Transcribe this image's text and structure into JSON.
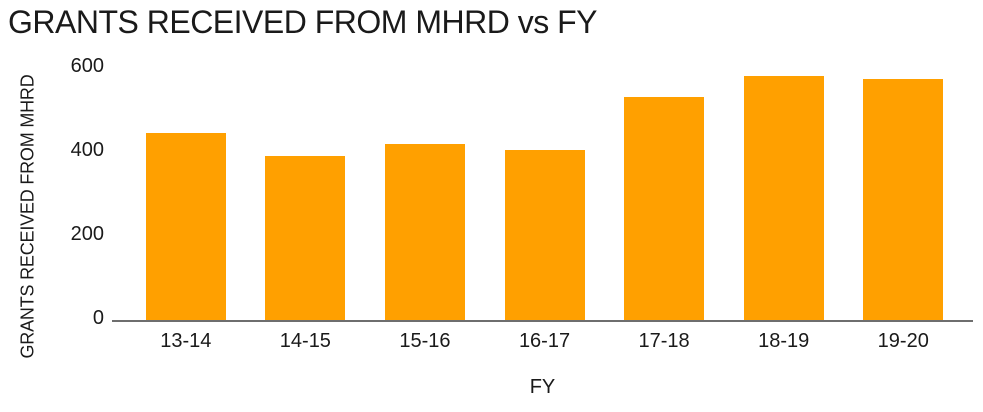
{
  "chart_data": {
    "type": "bar",
    "title": "GRANTS RECEIVED FROM MHRD vs FY",
    "xlabel": "FY",
    "ylabel": "GRANTS RECEIVED FROM MHRD",
    "categories": [
      "13-14",
      "14-15",
      "15-16",
      "16-17",
      "17-18",
      "18-19",
      "19-20"
    ],
    "values": [
      445,
      390,
      420,
      405,
      530,
      580,
      575
    ],
    "yticks": [
      0,
      200,
      400,
      600
    ],
    "ylim": [
      0,
      600
    ],
    "grid": false,
    "legend": false,
    "bar_color": "#FFA000",
    "axis_line_color": "#6E6E6E",
    "text_color": "#1A1A1A"
  }
}
